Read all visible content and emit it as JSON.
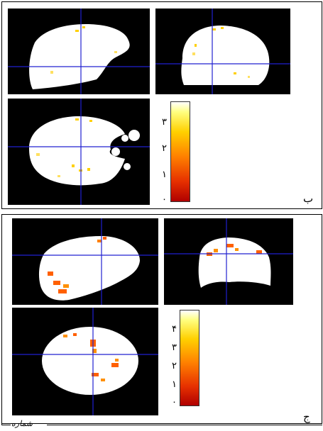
{
  "panel_b": {
    "label": "ب",
    "colorbar_ticks": [
      "۳",
      "۲",
      "۱",
      "۰"
    ]
  },
  "panel_c": {
    "label": "ج",
    "colorbar_ticks": [
      "۴",
      "۳",
      "۲",
      "۱",
      "۰"
    ]
  },
  "footer": {
    "text": "شماره"
  },
  "colors": {
    "crosshair": "#2020d0",
    "background": "#000000",
    "brain": "#ffffff",
    "activation_low": "#c00000",
    "activation_high": "#ffff60"
  }
}
